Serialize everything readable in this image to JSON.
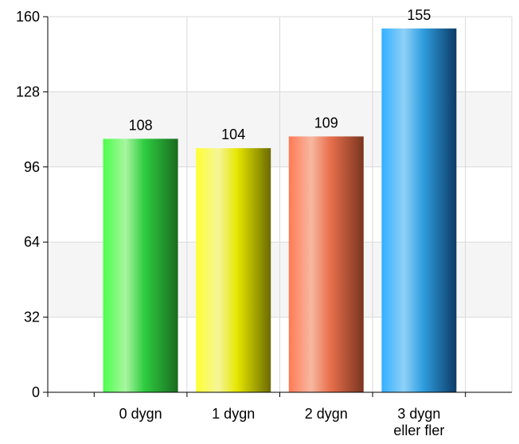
{
  "chart_data": {
    "type": "bar",
    "title": "",
    "xlabel": "",
    "ylabel": "",
    "categories": [
      "0 dygn",
      "1 dygn",
      "2 dygn",
      "3 dygn\neller fler"
    ],
    "values": [
      108,
      104,
      109,
      155
    ],
    "data_labels": [
      "108",
      "104",
      "109",
      "155"
    ],
    "ylim": [
      0,
      160
    ],
    "yticks": [
      0,
      32,
      64,
      96,
      128,
      160
    ],
    "ytick_labels": [
      "0",
      "32",
      "64",
      "96",
      "128",
      "160"
    ],
    "grid": true,
    "legend": "none",
    "bar_colors": [
      {
        "base": "#2ecc40",
        "light": "#a8f5a0",
        "dark": "#1a6b1f",
        "edge": "#4cff4c"
      },
      {
        "base": "#e6e600",
        "light": "#f5f59a",
        "dark": "#6b6b00",
        "edge": "#ffff33"
      },
      {
        "base": "#e8704c",
        "light": "#f7b8a0",
        "dark": "#7a3520",
        "edge": "#ff7a55"
      },
      {
        "base": "#2f9fe0",
        "light": "#8fd0f7",
        "dark": "#0c3a66",
        "edge": "#33b0ff"
      }
    ],
    "band_color": "#f5f5f5",
    "grid_color": "#d9d9d9"
  }
}
